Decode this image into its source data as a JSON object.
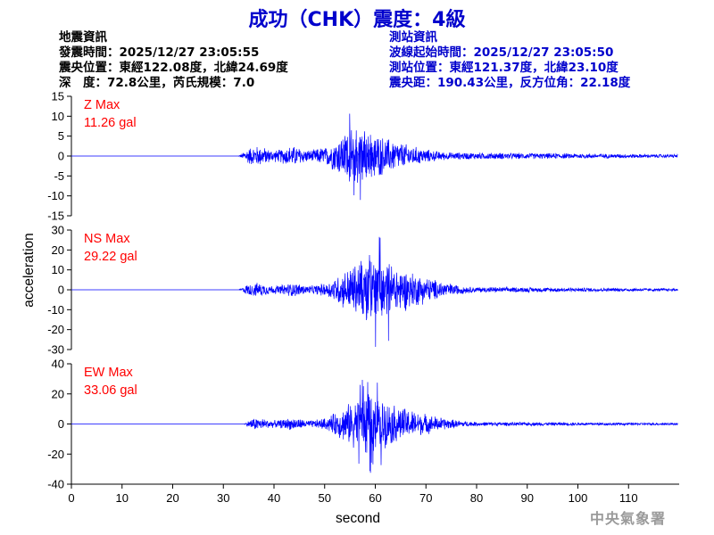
{
  "title": "成功（CHK）震度：4級",
  "quake_info": {
    "heading": "地震資訊",
    "time": "發震時間：2025/12/27 23:05:55",
    "epicenter": "震央位置：東經122.08度，北緯24.69度",
    "depth_magnitude": "深　度：72.8公里，芮氏規模：7.0"
  },
  "station_info": {
    "heading": "測站資訊",
    "wave_start": "波線起始時間：2025/12/27 23:05:50",
    "location": "測站位置：東經121.37度，北緯23.10度",
    "distance": "震央距：190.43公里，反方位角：22.18度"
  },
  "watermark": "中央氣象署",
  "colors": {
    "title": "#0000cc",
    "trace": "#0000ff",
    "max_label": "#ff0000",
    "axis": "#000000"
  },
  "chart_data": {
    "type": "line",
    "xlabel": "second",
    "ylabel": "acceleration",
    "xlim": [
      0,
      120
    ],
    "x_ticks": [
      0,
      10,
      20,
      30,
      40,
      50,
      60,
      70,
      80,
      90,
      100,
      110
    ],
    "grid": false,
    "panels": [
      {
        "max_label": "Z Max",
        "max_value_label": "11.26 gal",
        "max_value": 11.26,
        "ylim": [
          -15,
          15
        ],
        "y_ticks": [
          15,
          10,
          5,
          0,
          -5,
          -10,
          -15
        ],
        "envelope": {
          "onset": 33,
          "pre_level": 2.2,
          "rise_start": 50,
          "peak_time": 56,
          "peak_level": 8.5,
          "decay_end": 75,
          "tail_level": 1.0
        }
      },
      {
        "max_label": "NS Max",
        "max_value_label": "29.22 gal",
        "max_value": 29.22,
        "ylim": [
          -30,
          30
        ],
        "y_ticks": [
          30,
          20,
          10,
          0,
          -10,
          -20,
          -30
        ],
        "envelope": {
          "onset": 33,
          "pre_level": 3.0,
          "rise_start": 50,
          "peak_time": 59,
          "peak_level": 20,
          "decay_end": 80,
          "tail_level": 1.5
        }
      },
      {
        "max_label": "EW Max",
        "max_value_label": "33.06 gal",
        "max_value": 33.06,
        "ylim": [
          -40,
          40
        ],
        "y_ticks": [
          40,
          20,
          0,
          -20,
          -40
        ],
        "envelope": {
          "onset": 34,
          "pre_level": 3.5,
          "rise_start": 50,
          "peak_time": 58,
          "peak_level": 22,
          "decay_end": 80,
          "tail_level": 1.5
        }
      }
    ]
  }
}
